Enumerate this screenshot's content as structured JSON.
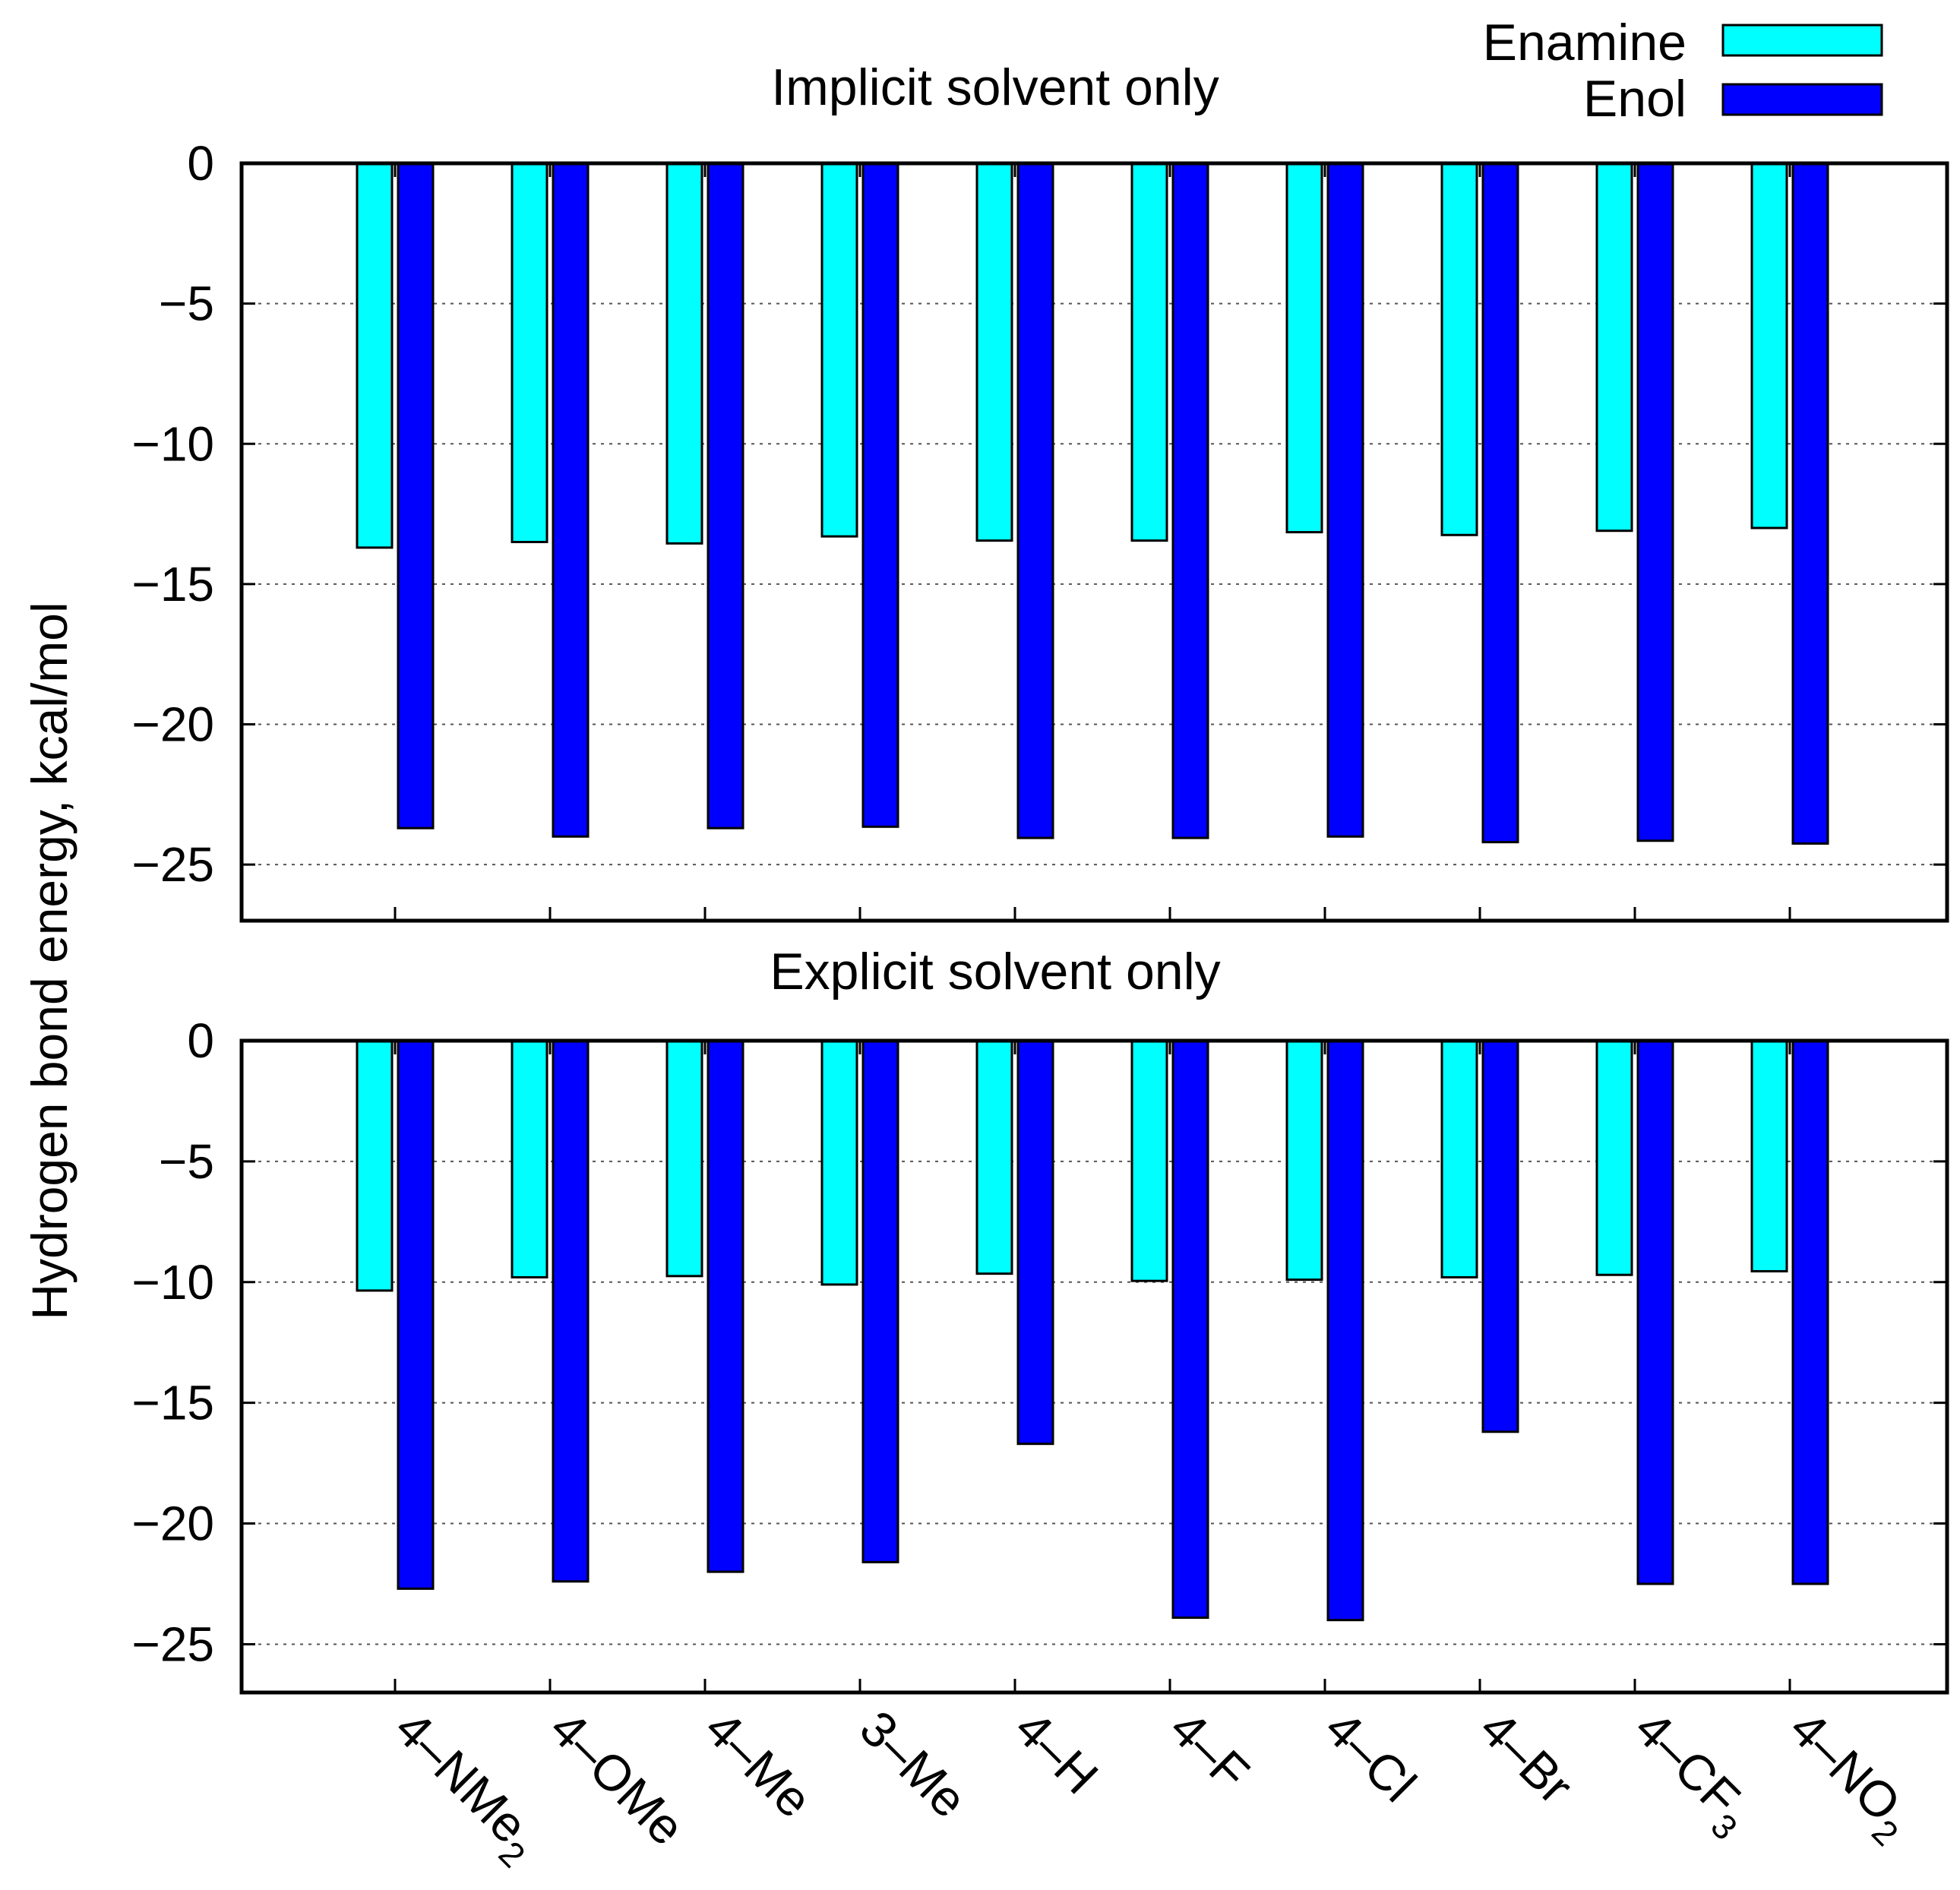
{
  "chart_data": [
    {
      "type": "bar",
      "title": "Implicit solvent only",
      "ylabel": "Hydrogen bond energy, kcal/mol",
      "ylim": [
        -27,
        0
      ],
      "yticks": [
        0,
        -5,
        -10,
        -15,
        -20,
        -25
      ],
      "ytick_labels": [
        "0",
        "−5",
        "−10",
        "−15",
        "−20",
        "−25"
      ],
      "grid": "horizontal dashed",
      "categories": [
        "4–NMe2",
        "4–OMe",
        "4–Me",
        "3–Me",
        "4–H",
        "4–F",
        "4–Cl",
        "4–Br",
        "4–CF3",
        "4–NO2"
      ],
      "series": [
        {
          "name": "Enamine",
          "color": "#00ffff",
          "values": [
            -13.7,
            -13.5,
            -13.55,
            -13.3,
            -13.45,
            -13.45,
            -13.15,
            -13.25,
            -13.1,
            -13.0
          ]
        },
        {
          "name": "Enol",
          "color": "#0000ff",
          "values": [
            -23.7,
            -24.0,
            -23.7,
            -23.65,
            -24.05,
            -24.05,
            -24.0,
            -24.2,
            -24.15,
            -24.25
          ]
        }
      ]
    },
    {
      "type": "bar",
      "title": "Explicit solvent only",
      "ylabel": "Hydrogen bond energy, kcal/mol",
      "ylim": [
        -27,
        0
      ],
      "yticks": [
        0,
        -5,
        -10,
        -15,
        -20,
        -25
      ],
      "ytick_labels": [
        "0",
        "−5",
        "−10",
        "−15",
        "−20",
        "−25"
      ],
      "grid": "horizontal dashed",
      "categories": [
        "4–NMe2",
        "4–OMe",
        "4–Me",
        "3–Me",
        "4–H",
        "4–F",
        "4–Cl",
        "4–Br",
        "4–CF3",
        "4–NO2"
      ],
      "series": [
        {
          "name": "Enamine",
          "color": "#00ffff",
          "values": [
            -10.35,
            -9.8,
            -9.75,
            -10.1,
            -9.65,
            -9.95,
            -9.9,
            -9.8,
            -9.7,
            -9.55
          ]
        },
        {
          "name": "Enol",
          "color": "#0000ff",
          "values": [
            -22.7,
            -22.4,
            -22.0,
            -21.6,
            -16.7,
            -23.9,
            -24.0,
            -16.2,
            -22.5,
            -22.5
          ]
        }
      ]
    }
  ],
  "legend": {
    "position": "top-right",
    "items": [
      {
        "label": "Enamine",
        "color": "#00ffff"
      },
      {
        "label": "Enol",
        "color": "#0000ff"
      }
    ]
  },
  "xtick_labels": [
    {
      "base": "4–NMe",
      "sub": "2"
    },
    {
      "base": "4–OMe",
      "sub": ""
    },
    {
      "base": "4–Me",
      "sub": ""
    },
    {
      "base": "3–Me",
      "sub": ""
    },
    {
      "base": "4–H",
      "sub": ""
    },
    {
      "base": "4–F",
      "sub": ""
    },
    {
      "base": "4–Cl",
      "sub": ""
    },
    {
      "base": "4–Br",
      "sub": ""
    },
    {
      "base": "4–CF",
      "sub": "3"
    },
    {
      "base": "4–NO",
      "sub": "2"
    }
  ]
}
